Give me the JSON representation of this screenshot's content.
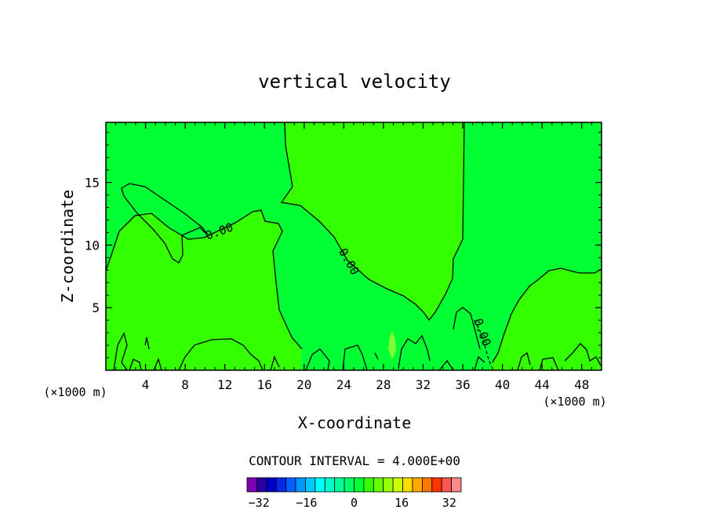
{
  "chart_data": {
    "type": "contour",
    "title": "vertical velocity",
    "xlabel": "X-coordinate",
    "ylabel": "Z-coordinate",
    "x_unit_left": "(×1000 m)",
    "x_unit_right": "(×1000 m)",
    "xlim": [
      0,
      50
    ],
    "ylim": [
      0,
      19.8
    ],
    "xticks": [
      4,
      8,
      12,
      16,
      20,
      24,
      28,
      32,
      36,
      40,
      44,
      48
    ],
    "yticks": [
      5,
      10,
      15
    ],
    "contour_label": "0.00",
    "contour_interval_text": "CONTOUR INTERVAL = 4.000E+00",
    "contour_interval": 4.0,
    "field_colors": {
      "positive": "#33ff00",
      "negative": "#00ff33",
      "weak_positive": "#7fff33"
    },
    "colorbar": {
      "min": -36,
      "max": 36,
      "step": 4,
      "tick_labels": [
        "-32",
        "-16",
        "0",
        "16",
        "32"
      ],
      "colors": [
        "#7a00b0",
        "#2a00a0",
        "#0000c8",
        "#0028e6",
        "#0060ff",
        "#0096ff",
        "#00c8ff",
        "#00ffff",
        "#00ffcc",
        "#00ff99",
        "#00ff66",
        "#00ff33",
        "#33ff00",
        "#66ff00",
        "#99ff00",
        "#ccff00",
        "#ffdd00",
        "#ffaa00",
        "#ff7700",
        "#ff3300",
        "#ff5555",
        "#ff8888"
      ]
    }
  }
}
